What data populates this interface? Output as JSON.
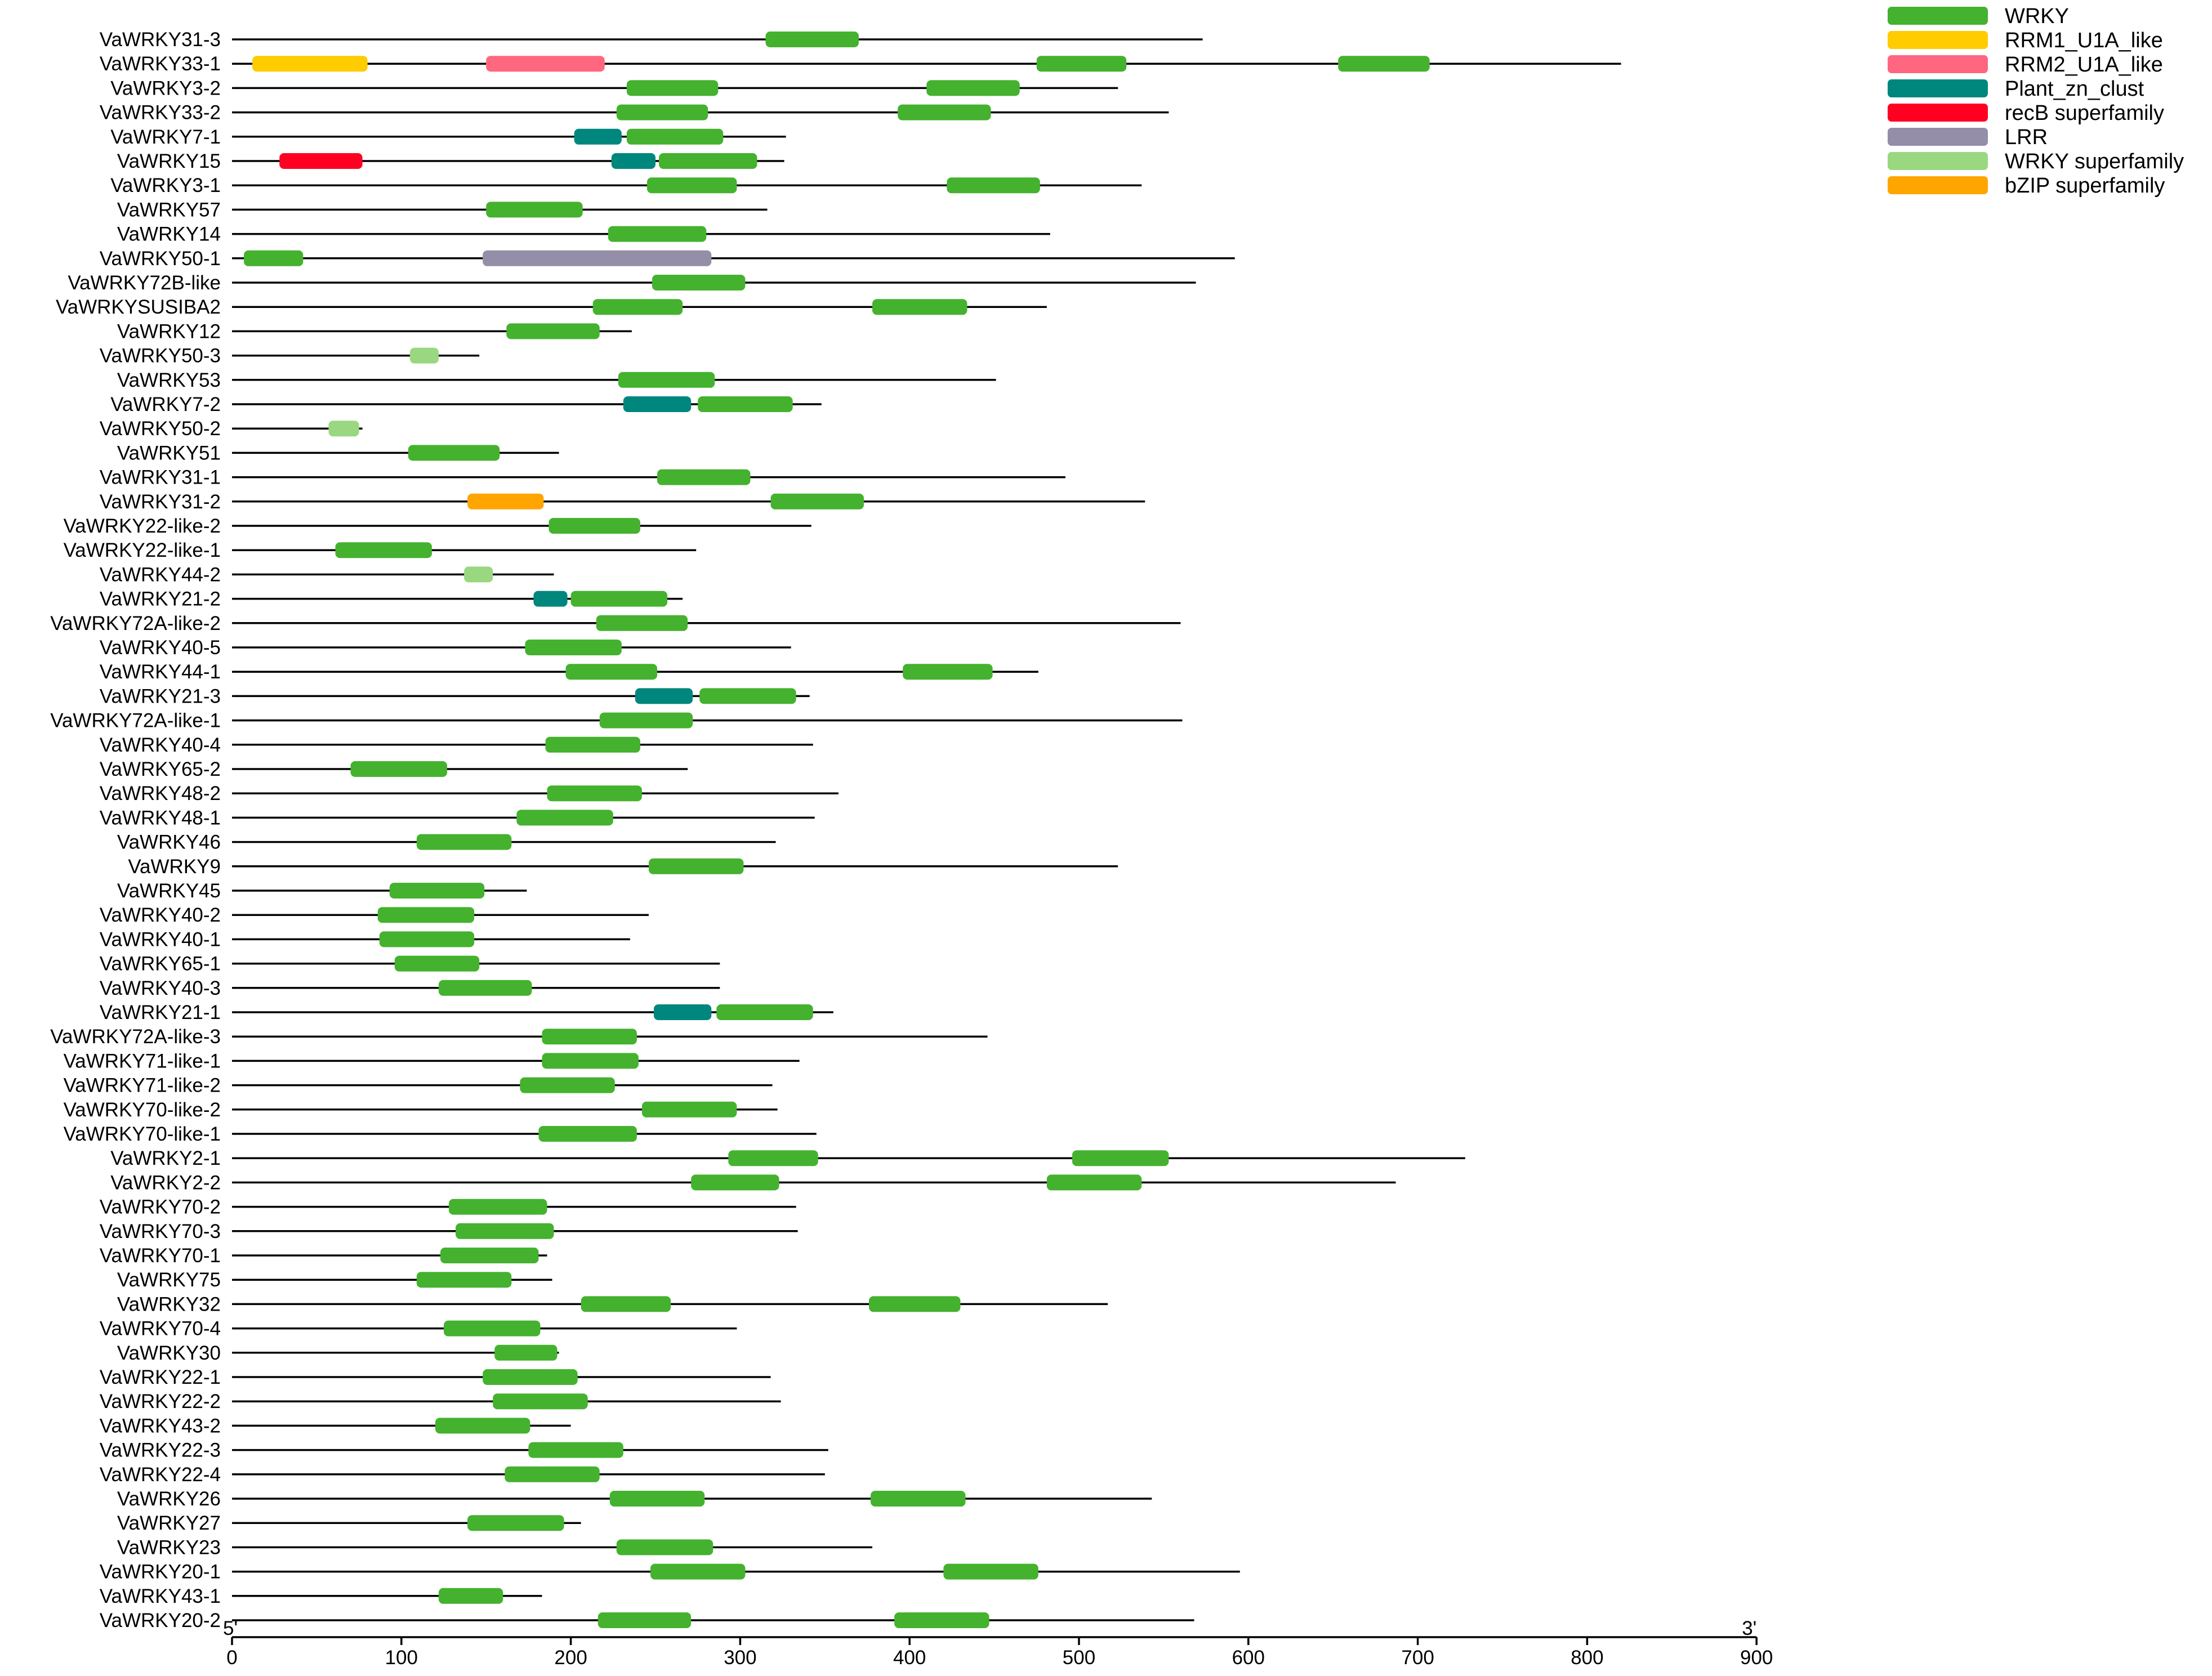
{
  "chart_data": {
    "type": "protein-domain-map",
    "x_axis": {
      "min": 0,
      "max": 900,
      "ticks": [
        0,
        100,
        200,
        300,
        400,
        500,
        600,
        700,
        800,
        900
      ],
      "start_label": "5'",
      "end_label": "3'"
    },
    "legend": [
      {
        "name": "WRKY",
        "color": "#44b22e"
      },
      {
        "name": "RRM1_U1A_like",
        "color": "#ffcc00"
      },
      {
        "name": "RRM2_U1A_like",
        "color": "#ff6680"
      },
      {
        "name": "Plant_zn_clust",
        "color": "#00877d"
      },
      {
        "name": "recB superfamily",
        "color": "#ff0022"
      },
      {
        "name": "LRR",
        "color": "#948ea8"
      },
      {
        "name": "WRKY superfamily",
        "color": "#99d880"
      },
      {
        "name": "bZIP superfamily",
        "color": "#ffa500"
      }
    ],
    "proteins": [
      {
        "name": "VaWRKY31-3",
        "length": 573,
        "domains": [
          [
            "WRKY",
            315,
            370
          ]
        ]
      },
      {
        "name": "VaWRKY33-1",
        "length": 820,
        "domains": [
          [
            "RRM1_U1A_like",
            12,
            80
          ],
          [
            "RRM2_U1A_like",
            150,
            220
          ],
          [
            "WRKY",
            475,
            528
          ],
          [
            "WRKY",
            653,
            707
          ]
        ]
      },
      {
        "name": "VaWRKY3-2",
        "length": 523,
        "domains": [
          [
            "WRKY",
            233,
            287
          ],
          [
            "WRKY",
            410,
            465
          ]
        ]
      },
      {
        "name": "VaWRKY33-2",
        "length": 553,
        "domains": [
          [
            "WRKY",
            227,
            281
          ],
          [
            "WRKY",
            393,
            448
          ]
        ]
      },
      {
        "name": "VaWRKY7-1",
        "length": 327,
        "domains": [
          [
            "Plant_zn_clust",
            202,
            230
          ],
          [
            "WRKY",
            233,
            290
          ]
        ]
      },
      {
        "name": "VaWRKY15",
        "length": 326,
        "domains": [
          [
            "recB superfamily",
            28,
            77
          ],
          [
            "Plant_zn_clust",
            224,
            250
          ],
          [
            "WRKY",
            252,
            310
          ]
        ]
      },
      {
        "name": "VaWRKY3-1",
        "length": 537,
        "domains": [
          [
            "WRKY",
            245,
            298
          ],
          [
            "WRKY",
            422,
            477
          ]
        ]
      },
      {
        "name": "VaWRKY57",
        "length": 316,
        "domains": [
          [
            "WRKY",
            150,
            207
          ]
        ]
      },
      {
        "name": "VaWRKY14",
        "length": 483,
        "domains": [
          [
            "WRKY",
            222,
            280
          ]
        ]
      },
      {
        "name": "VaWRKY50-1",
        "length": 592,
        "domains": [
          [
            "WRKY",
            7,
            42
          ],
          [
            "LRR",
            148,
            283
          ]
        ]
      },
      {
        "name": "VaWRKY72B-like",
        "length": 569,
        "domains": [
          [
            "WRKY",
            248,
            303
          ]
        ]
      },
      {
        "name": "VaWRKYSUSIBA2",
        "length": 481,
        "domains": [
          [
            "WRKY",
            213,
            266
          ],
          [
            "WRKY",
            378,
            434
          ]
        ]
      },
      {
        "name": "VaWRKY12",
        "length": 236,
        "domains": [
          [
            "WRKY",
            162,
            217
          ]
        ]
      },
      {
        "name": "VaWRKY50-3",
        "length": 146,
        "domains": [
          [
            "WRKY superfamily",
            105,
            122
          ]
        ]
      },
      {
        "name": "VaWRKY53",
        "length": 451,
        "domains": [
          [
            "WRKY",
            228,
            285
          ]
        ]
      },
      {
        "name": "VaWRKY7-2",
        "length": 348,
        "domains": [
          [
            "Plant_zn_clust",
            231,
            271
          ],
          [
            "WRKY",
            275,
            331
          ]
        ]
      },
      {
        "name": "VaWRKY50-2",
        "length": 77,
        "domains": [
          [
            "WRKY superfamily",
            57,
            75
          ]
        ]
      },
      {
        "name": "VaWRKY51",
        "length": 193,
        "domains": [
          [
            "WRKY",
            104,
            158
          ]
        ]
      },
      {
        "name": "VaWRKY31-1",
        "length": 492,
        "domains": [
          [
            "WRKY",
            251,
            306
          ]
        ]
      },
      {
        "name": "VaWRKY31-2",
        "length": 539,
        "domains": [
          [
            "bZIP superfamily",
            139,
            184
          ],
          [
            "WRKY",
            318,
            373
          ]
        ]
      },
      {
        "name": "VaWRKY22-like-2",
        "length": 342,
        "domains": [
          [
            "WRKY",
            187,
            241
          ]
        ]
      },
      {
        "name": "VaWRKY22-like-1",
        "length": 274,
        "domains": [
          [
            "WRKY",
            61,
            118
          ]
        ]
      },
      {
        "name": "VaWRKY44-2",
        "length": 190,
        "domains": [
          [
            "WRKY superfamily",
            137,
            154
          ]
        ]
      },
      {
        "name": "VaWRKY21-2",
        "length": 266,
        "domains": [
          [
            "Plant_zn_clust",
            178,
            198
          ],
          [
            "WRKY",
            200,
            257
          ]
        ]
      },
      {
        "name": "VaWRKY72A-like-2",
        "length": 560,
        "domains": [
          [
            "WRKY",
            215,
            269
          ]
        ]
      },
      {
        "name": "VaWRKY40-5",
        "length": 330,
        "domains": [
          [
            "WRKY",
            173,
            230
          ]
        ]
      },
      {
        "name": "VaWRKY44-1",
        "length": 476,
        "domains": [
          [
            "WRKY",
            197,
            251
          ],
          [
            "WRKY",
            396,
            449
          ]
        ]
      },
      {
        "name": "VaWRKY21-3",
        "length": 341,
        "domains": [
          [
            "Plant_zn_clust",
            238,
            272
          ],
          [
            "WRKY",
            276,
            333
          ]
        ]
      },
      {
        "name": "VaWRKY72A-like-1",
        "length": 561,
        "domains": [
          [
            "WRKY",
            217,
            272
          ]
        ]
      },
      {
        "name": "VaWRKY40-4",
        "length": 343,
        "domains": [
          [
            "WRKY",
            185,
            241
          ]
        ]
      },
      {
        "name": "VaWRKY65-2",
        "length": 269,
        "domains": [
          [
            "WRKY",
            70,
            127
          ]
        ]
      },
      {
        "name": "VaWRKY48-2",
        "length": 358,
        "domains": [
          [
            "WRKY",
            186,
            242
          ]
        ]
      },
      {
        "name": "VaWRKY48-1",
        "length": 344,
        "domains": [
          [
            "WRKY",
            168,
            225
          ]
        ]
      },
      {
        "name": "VaWRKY46",
        "length": 321,
        "domains": [
          [
            "WRKY",
            109,
            165
          ]
        ]
      },
      {
        "name": "VaWRKY9",
        "length": 523,
        "domains": [
          [
            "WRKY",
            246,
            302
          ]
        ]
      },
      {
        "name": "VaWRKY45",
        "length": 174,
        "domains": [
          [
            "WRKY",
            93,
            149
          ]
        ]
      },
      {
        "name": "VaWRKY40-2",
        "length": 246,
        "domains": [
          [
            "WRKY",
            86,
            143
          ]
        ]
      },
      {
        "name": "VaWRKY40-1",
        "length": 235,
        "domains": [
          [
            "WRKY",
            87,
            143
          ]
        ]
      },
      {
        "name": "VaWRKY65-1",
        "length": 288,
        "domains": [
          [
            "WRKY",
            96,
            146
          ]
        ]
      },
      {
        "name": "VaWRKY40-3",
        "length": 288,
        "domains": [
          [
            "WRKY",
            122,
            177
          ]
        ]
      },
      {
        "name": "VaWRKY21-1",
        "length": 355,
        "domains": [
          [
            "Plant_zn_clust",
            249,
            283
          ],
          [
            "WRKY",
            286,
            343
          ]
        ]
      },
      {
        "name": "VaWRKY72A-like-3",
        "length": 446,
        "domains": [
          [
            "WRKY",
            183,
            239
          ]
        ]
      },
      {
        "name": "VaWRKY71-like-1",
        "length": 335,
        "domains": [
          [
            "WRKY",
            183,
            240
          ]
        ]
      },
      {
        "name": "VaWRKY71-like-2",
        "length": 319,
        "domains": [
          [
            "WRKY",
            170,
            226
          ]
        ]
      },
      {
        "name": "VaWRKY70-like-2",
        "length": 322,
        "domains": [
          [
            "WRKY",
            242,
            298
          ]
        ]
      },
      {
        "name": "VaWRKY70-like-1",
        "length": 345,
        "domains": [
          [
            "WRKY",
            181,
            239
          ]
        ]
      },
      {
        "name": "VaWRKY2-1",
        "length": 728,
        "domains": [
          [
            "WRKY",
            293,
            346
          ],
          [
            "WRKY",
            496,
            553
          ]
        ]
      },
      {
        "name": "VaWRKY2-2",
        "length": 687,
        "domains": [
          [
            "WRKY",
            271,
            323
          ],
          [
            "WRKY",
            481,
            537
          ]
        ]
      },
      {
        "name": "VaWRKY70-2",
        "length": 333,
        "domains": [
          [
            "WRKY",
            128,
            186
          ]
        ]
      },
      {
        "name": "VaWRKY70-3",
        "length": 334,
        "domains": [
          [
            "WRKY",
            132,
            190
          ]
        ]
      },
      {
        "name": "VaWRKY70-1",
        "length": 186,
        "domains": [
          [
            "WRKY",
            123,
            181
          ]
        ]
      },
      {
        "name": "VaWRKY75",
        "length": 189,
        "domains": [
          [
            "WRKY",
            109,
            165
          ]
        ]
      },
      {
        "name": "VaWRKY32",
        "length": 517,
        "domains": [
          [
            "WRKY",
            206,
            259
          ],
          [
            "WRKY",
            376,
            430
          ]
        ]
      },
      {
        "name": "VaWRKY70-4",
        "length": 298,
        "domains": [
          [
            "WRKY",
            125,
            182
          ]
        ]
      },
      {
        "name": "VaWRKY30",
        "length": 193,
        "domains": [
          [
            "WRKY",
            155,
            192
          ]
        ]
      },
      {
        "name": "VaWRKY22-1",
        "length": 318,
        "domains": [
          [
            "WRKY",
            148,
            204
          ]
        ]
      },
      {
        "name": "VaWRKY22-2",
        "length": 324,
        "domains": [
          [
            "WRKY",
            154,
            210
          ]
        ]
      },
      {
        "name": "VaWRKY43-2",
        "length": 200,
        "domains": [
          [
            "WRKY",
            120,
            176
          ]
        ]
      },
      {
        "name": "VaWRKY22-3",
        "length": 352,
        "domains": [
          [
            "WRKY",
            175,
            231
          ]
        ]
      },
      {
        "name": "VaWRKY22-4",
        "length": 350,
        "domains": [
          [
            "WRKY",
            161,
            217
          ]
        ]
      },
      {
        "name": "VaWRKY26",
        "length": 543,
        "domains": [
          [
            "WRKY",
            223,
            279
          ],
          [
            "WRKY",
            377,
            433
          ]
        ]
      },
      {
        "name": "VaWRKY27",
        "length": 206,
        "domains": [
          [
            "WRKY",
            139,
            196
          ]
        ]
      },
      {
        "name": "VaWRKY23",
        "length": 378,
        "domains": [
          [
            "WRKY",
            227,
            284
          ]
        ]
      },
      {
        "name": "VaWRKY20-1",
        "length": 595,
        "domains": [
          [
            "WRKY",
            247,
            303
          ],
          [
            "WRKY",
            420,
            476
          ]
        ]
      },
      {
        "name": "VaWRKY43-1",
        "length": 183,
        "domains": [
          [
            "WRKY",
            122,
            160
          ]
        ]
      },
      {
        "name": "VaWRKY20-2",
        "length": 568,
        "domains": [
          [
            "WRKY",
            216,
            271
          ],
          [
            "WRKY",
            391,
            447
          ]
        ]
      }
    ]
  }
}
